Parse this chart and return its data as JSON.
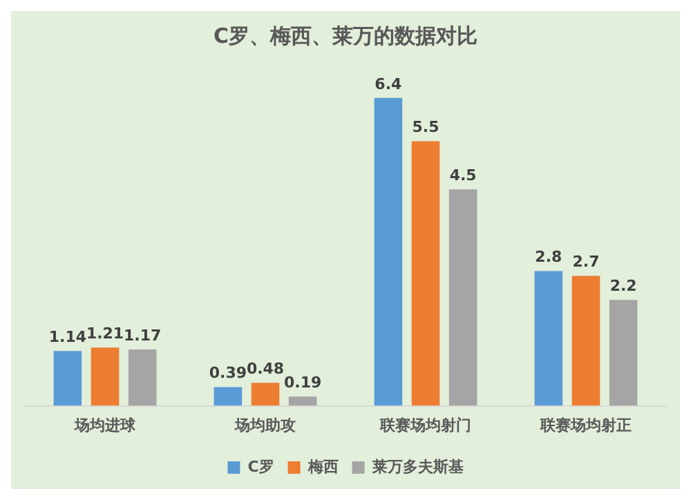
{
  "chart_data": {
    "type": "bar",
    "title": "C罗、梅西、莱万的数据对比",
    "categories": [
      "场均进球",
      "场均助攻",
      "联赛场均射门",
      "联赛场均射正"
    ],
    "series": [
      {
        "name": "C罗",
        "color": "#5b9bd5",
        "values": [
          1.14,
          0.39,
          6.4,
          2.8
        ]
      },
      {
        "name": "梅西",
        "color": "#ed7d31",
        "values": [
          1.21,
          0.48,
          5.5,
          2.7
        ]
      },
      {
        "name": "莱万多夫斯基",
        "color": "#a5a5a5",
        "values": [
          1.17,
          0.19,
          4.5,
          2.2
        ]
      }
    ],
    "data_labels": true,
    "legend": "bottom",
    "grid": false
  }
}
